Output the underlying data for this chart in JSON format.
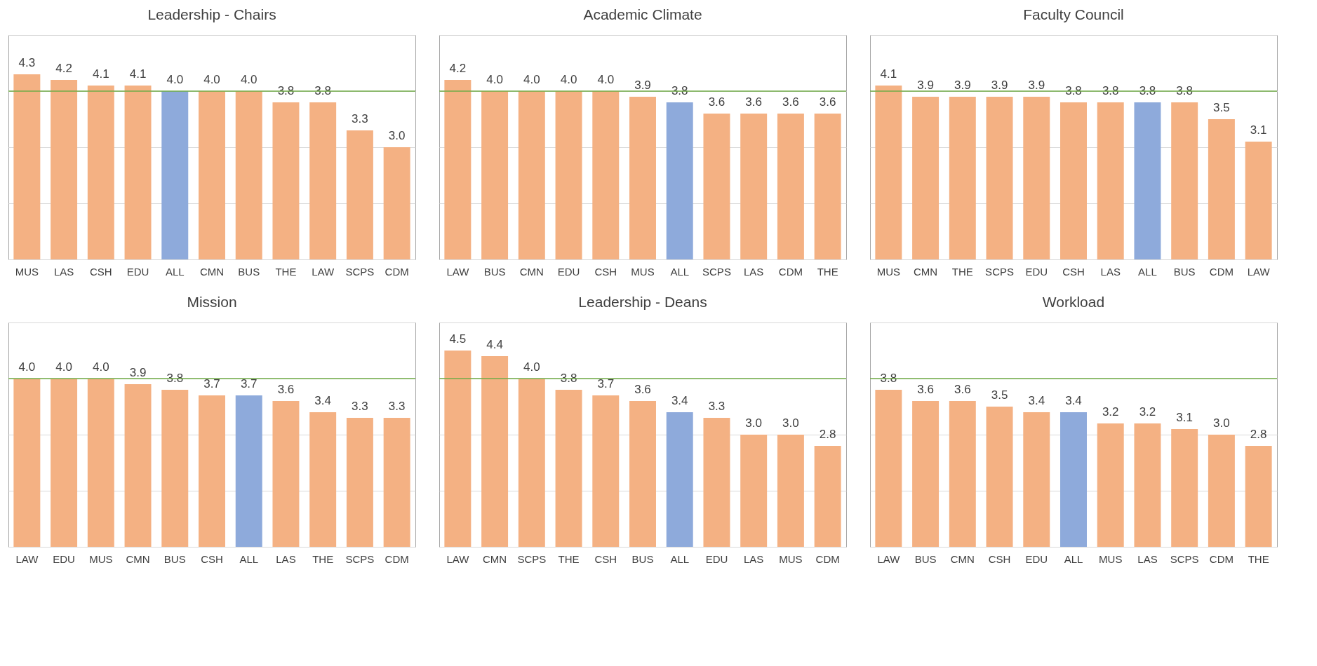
{
  "chart_data": [
    {
      "type": "bar",
      "title": "Leadership - Chairs",
      "categories": [
        "MUS",
        "LAS",
        "CSH",
        "EDU",
        "ALL",
        "CMN",
        "BUS",
        "THE",
        "LAW",
        "SCPS",
        "CDM"
      ],
      "values": [
        4.3,
        4.2,
        4.1,
        4.1,
        4.0,
        4.0,
        4.0,
        3.8,
        3.8,
        3.3,
        3.0
      ],
      "value_labels": [
        "4.3",
        "4.2",
        "4.1",
        "4.1",
        "4.0",
        "4.0",
        "4.0",
        "3.8",
        "3.8",
        "3.3",
        "3.0"
      ],
      "colors": [
        "#f4b183",
        "#f4b183",
        "#f4b183",
        "#f4b183",
        "#8eaadb",
        "#f4b183",
        "#f4b183",
        "#f4b183",
        "#f4b183",
        "#f4b183",
        "#f4b183"
      ],
      "ylim": [
        1,
        5
      ],
      "yticks": [
        {
          "value": 1,
          "label": null
        },
        {
          "value": 2,
          "label": null
        },
        {
          "value": 3,
          "label": null
        },
        {
          "value": 4,
          "label": null
        },
        {
          "value": 5,
          "label": null
        }
      ],
      "grid": "y",
      "tick_labels": "x",
      "ref_lines": [
        {
          "axis": "y",
          "value": 4.0,
          "color": "#70ad47"
        }
      ]
    },
    {
      "type": "bar",
      "title": "Academic Climate",
      "categories": [
        "LAW",
        "BUS",
        "CMN",
        "EDU",
        "CSH",
        "MUS",
        "ALL",
        "SCPS",
        "LAS",
        "CDM",
        "THE"
      ],
      "values": [
        4.2,
        4.0,
        4.0,
        4.0,
        4.0,
        3.9,
        3.8,
        3.6,
        3.6,
        3.6,
        3.6
      ],
      "value_labels": [
        "4.2",
        "4.0",
        "4.0",
        "4.0",
        "4.0",
        "3.9",
        "3.8",
        "3.6",
        "3.6",
        "3.6",
        "3.6"
      ],
      "colors": [
        "#f4b183",
        "#f4b183",
        "#f4b183",
        "#f4b183",
        "#f4b183",
        "#f4b183",
        "#8eaadb",
        "#f4b183",
        "#f4b183",
        "#f4b183",
        "#f4b183"
      ],
      "ylim": [
        1,
        5
      ],
      "yticks": [
        {
          "value": 1,
          "label": null
        },
        {
          "value": 2,
          "label": null
        },
        {
          "value": 3,
          "label": null
        },
        {
          "value": 4,
          "label": null
        },
        {
          "value": 5,
          "label": null
        }
      ],
      "grid": "y",
      "tick_labels": "x",
      "ref_lines": [
        {
          "axis": "y",
          "value": 4.0,
          "color": "#70ad47"
        }
      ]
    },
    {
      "type": "bar",
      "title": "Faculty Council",
      "categories": [
        "MUS",
        "CMN",
        "THE",
        "SCPS",
        "EDU",
        "CSH",
        "LAS",
        "ALL",
        "BUS",
        "CDM",
        "LAW"
      ],
      "values": [
        4.1,
        3.9,
        3.9,
        3.9,
        3.9,
        3.8,
        3.8,
        3.8,
        3.8,
        3.5,
        3.1
      ],
      "value_labels": [
        "4.1",
        "3.9",
        "3.9",
        "3.9",
        "3.9",
        "3.8",
        "3.8",
        "3.8",
        "3.8",
        "3.5",
        "3.1"
      ],
      "colors": [
        "#f4b183",
        "#f4b183",
        "#f4b183",
        "#f4b183",
        "#f4b183",
        "#f4b183",
        "#f4b183",
        "#8eaadb",
        "#f4b183",
        "#f4b183",
        "#f4b183"
      ],
      "ylim": [
        1,
        5
      ],
      "yticks": [
        {
          "value": 1,
          "label": null
        },
        {
          "value": 2,
          "label": null
        },
        {
          "value": 3,
          "label": null
        },
        {
          "value": 4,
          "label": null
        },
        {
          "value": 5,
          "label": null
        }
      ],
      "grid": "y",
      "tick_labels": "x",
      "ref_lines": [
        {
          "axis": "y",
          "value": 4.0,
          "color": "#70ad47"
        }
      ]
    },
    {
      "type": "bar",
      "title": "Mission",
      "categories": [
        "LAW",
        "EDU",
        "MUS",
        "CMN",
        "BUS",
        "CSH",
        "ALL",
        "LAS",
        "THE",
        "SCPS",
        "CDM"
      ],
      "values": [
        4.0,
        4.0,
        4.0,
        3.9,
        3.8,
        3.7,
        3.7,
        3.6,
        3.4,
        3.3,
        3.3
      ],
      "value_labels": [
        "4.0",
        "4.0",
        "4.0",
        "3.9",
        "3.8",
        "3.7",
        "3.7",
        "3.6",
        "3.4",
        "3.3",
        "3.3"
      ],
      "colors": [
        "#f4b183",
        "#f4b183",
        "#f4b183",
        "#f4b183",
        "#f4b183",
        "#f4b183",
        "#8eaadb",
        "#f4b183",
        "#f4b183",
        "#f4b183",
        "#f4b183"
      ],
      "ylim": [
        1,
        5
      ],
      "yticks": [
        {
          "value": 1,
          "label": null
        },
        {
          "value": 2,
          "label": null
        },
        {
          "value": 3,
          "label": null
        },
        {
          "value": 4,
          "label": null
        },
        {
          "value": 5,
          "label": null
        }
      ],
      "grid": "y",
      "tick_labels": "x",
      "ref_lines": [
        {
          "axis": "y",
          "value": 4.0,
          "color": "#70ad47"
        }
      ]
    },
    {
      "type": "bar",
      "title": "Leadership - Deans",
      "categories": [
        "LAW",
        "CMN",
        "SCPS",
        "THE",
        "CSH",
        "BUS",
        "ALL",
        "EDU",
        "LAS",
        "MUS",
        "CDM"
      ],
      "values": [
        4.5,
        4.4,
        4.0,
        3.8,
        3.7,
        3.6,
        3.4,
        3.3,
        3.0,
        3.0,
        2.8
      ],
      "value_labels": [
        "4.5",
        "4.4",
        "4.0",
        "3.8",
        "3.7",
        "3.6",
        "3.4",
        "3.3",
        "3.0",
        "3.0",
        "2.8"
      ],
      "colors": [
        "#f4b183",
        "#f4b183",
        "#f4b183",
        "#f4b183",
        "#f4b183",
        "#f4b183",
        "#8eaadb",
        "#f4b183",
        "#f4b183",
        "#f4b183",
        "#f4b183"
      ],
      "ylim": [
        1,
        5
      ],
      "yticks": [
        {
          "value": 1,
          "label": null
        },
        {
          "value": 2,
          "label": null
        },
        {
          "value": 3,
          "label": null
        },
        {
          "value": 4,
          "label": null
        },
        {
          "value": 5,
          "label": null
        }
      ],
      "grid": "y",
      "tick_labels": "x",
      "ref_lines": [
        {
          "axis": "y",
          "value": 4.0,
          "color": "#70ad47"
        }
      ]
    },
    {
      "type": "bar",
      "title": "Workload",
      "categories": [
        "LAW",
        "BUS",
        "CMN",
        "CSH",
        "EDU",
        "ALL",
        "MUS",
        "LAS",
        "SCPS",
        "CDM",
        "THE"
      ],
      "values": [
        3.8,
        3.6,
        3.6,
        3.5,
        3.4,
        3.4,
        3.2,
        3.2,
        3.1,
        3.0,
        2.8
      ],
      "value_labels": [
        "3.8",
        "3.6",
        "3.6",
        "3.5",
        "3.4",
        "3.4",
        "3.2",
        "3.2",
        "3.1",
        "3.0",
        "2.8"
      ],
      "colors": [
        "#f4b183",
        "#f4b183",
        "#f4b183",
        "#f4b183",
        "#f4b183",
        "#8eaadb",
        "#f4b183",
        "#f4b183",
        "#f4b183",
        "#f4b183",
        "#f4b183"
      ],
      "ylim": [
        1,
        5
      ],
      "yticks": [
        {
          "value": 1,
          "label": null
        },
        {
          "value": 2,
          "label": null
        },
        {
          "value": 3,
          "label": null
        },
        {
          "value": 4,
          "label": null
        },
        {
          "value": 5,
          "label": null
        }
      ],
      "grid": "y",
      "tick_labels": "x",
      "ref_lines": [
        {
          "axis": "y",
          "value": 4.0,
          "color": "#70ad47"
        }
      ]
    }
  ]
}
